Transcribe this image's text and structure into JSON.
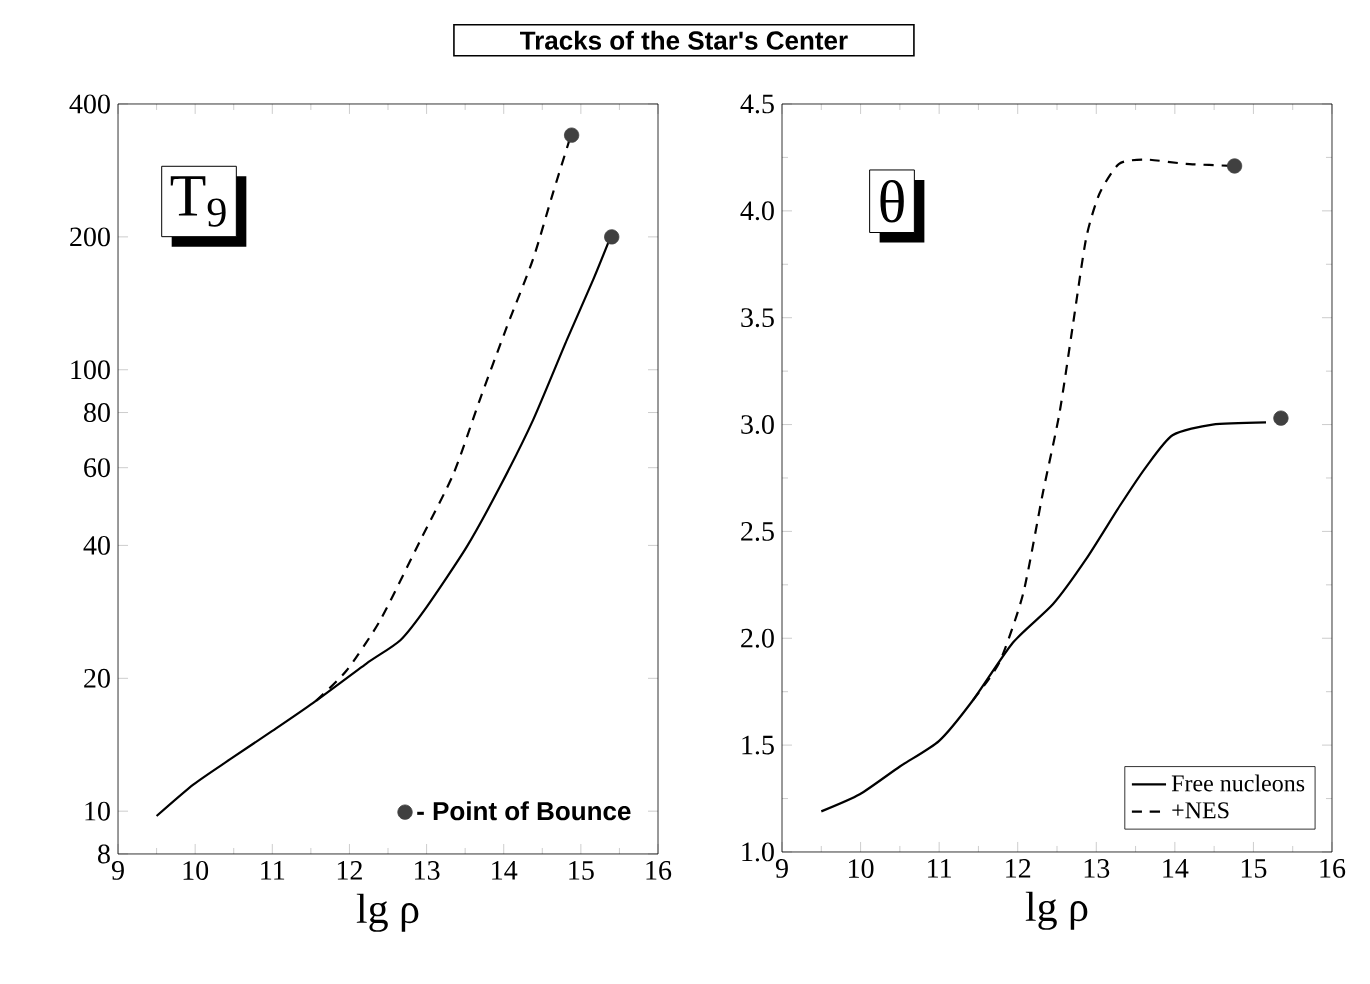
{
  "chart_data": [
    {
      "type": "line",
      "title": "Tracks of the Star's Center",
      "xlabel": "lg ρ",
      "log": "y",
      "xlim": [
        9,
        16
      ],
      "xticks": [
        9,
        10,
        11,
        12,
        13,
        14,
        15,
        16
      ],
      "ylim": [
        8,
        400
      ],
      "yticks": [
        8,
        10,
        20,
        40,
        60,
        80,
        100,
        200,
        400
      ],
      "annotations": [
        "T$_{9}$"
      ],
      "legend": "bottom right",
      "series": [
        {
          "color": "#000000",
          "line_style": "solid",
          "x": [
            9.5,
            9.98,
            10.45,
            11.0,
            11.53,
            12.22,
            12.66,
            13.0,
            13.52,
            13.95,
            14.38,
            14.82,
            15.16,
            15.38
          ],
          "values": [
            9.75,
            11.5,
            13.1,
            15.2,
            17.6,
            21.6,
            24.4,
            29.0,
            39.7,
            54.3,
            76.9,
            117,
            160,
            199
          ]
        },
        {
          "color": "#000000",
          "line_style": "dashed",
          "x": [
            11.57,
            11.96,
            12.4,
            12.92,
            13.35,
            13.69,
            14.04,
            14.38,
            14.64,
            14.86
          ],
          "values": [
            17.8,
            20.8,
            27.1,
            41.1,
            58.2,
            85.5,
            125,
            178,
            252,
            335
          ]
        },
        {
          "type": "scatter",
          "name": "- Point of Bounce",
          "color": "#404040",
          "marker": "circle",
          "x": [
            15.4,
            14.88
          ],
          "values": [
            200,
            340
          ]
        }
      ]
    },
    {
      "type": "line",
      "xlabel": "lg ρ",
      "xlim": [
        9,
        16
      ],
      "xticks": [
        9,
        10,
        11,
        12,
        13,
        14,
        15,
        16
      ],
      "ylim": [
        1,
        4.5
      ],
      "yticks": [
        {
          "value": 1,
          "label": "1.0"
        },
        1.5,
        {
          "value": 2,
          "label": "2.0"
        },
        2.5,
        {
          "value": 3,
          "label": "3.0"
        },
        3.5,
        {
          "value": 4,
          "label": "4.0"
        },
        4.5
      ],
      "annotations": [
        "θ"
      ],
      "legend": "bottom right",
      "series": [
        {
          "name": "Free nucleons",
          "color": "#000000",
          "line_style": "solid",
          "x": [
            9.5,
            9.99,
            10.5,
            11.0,
            11.43,
            11.94,
            12.45,
            12.87,
            13.3,
            13.63,
            13.97,
            14.48,
            15.16
          ],
          "values": [
            1.19,
            1.27,
            1.4,
            1.52,
            1.71,
            1.98,
            2.16,
            2.37,
            2.62,
            2.8,
            2.95,
            3.0,
            3.01
          ]
        },
        {
          "name": "+NES",
          "color": "#000000",
          "line_style": "dashed",
          "x": [
            11.43,
            11.77,
            12.07,
            12.32,
            12.53,
            12.7,
            12.87,
            13.04,
            13.29,
            13.63,
            14.14,
            14.76
          ],
          "values": [
            1.71,
            1.89,
            2.21,
            2.68,
            3.05,
            3.46,
            3.87,
            4.08,
            4.22,
            4.24,
            4.22,
            4.21
          ]
        },
        {
          "type": "scatter",
          "color": "#404040",
          "marker": "circle",
          "x": [
            15.35,
            14.76
          ],
          "values": [
            3.03,
            4.21
          ]
        }
      ]
    }
  ]
}
